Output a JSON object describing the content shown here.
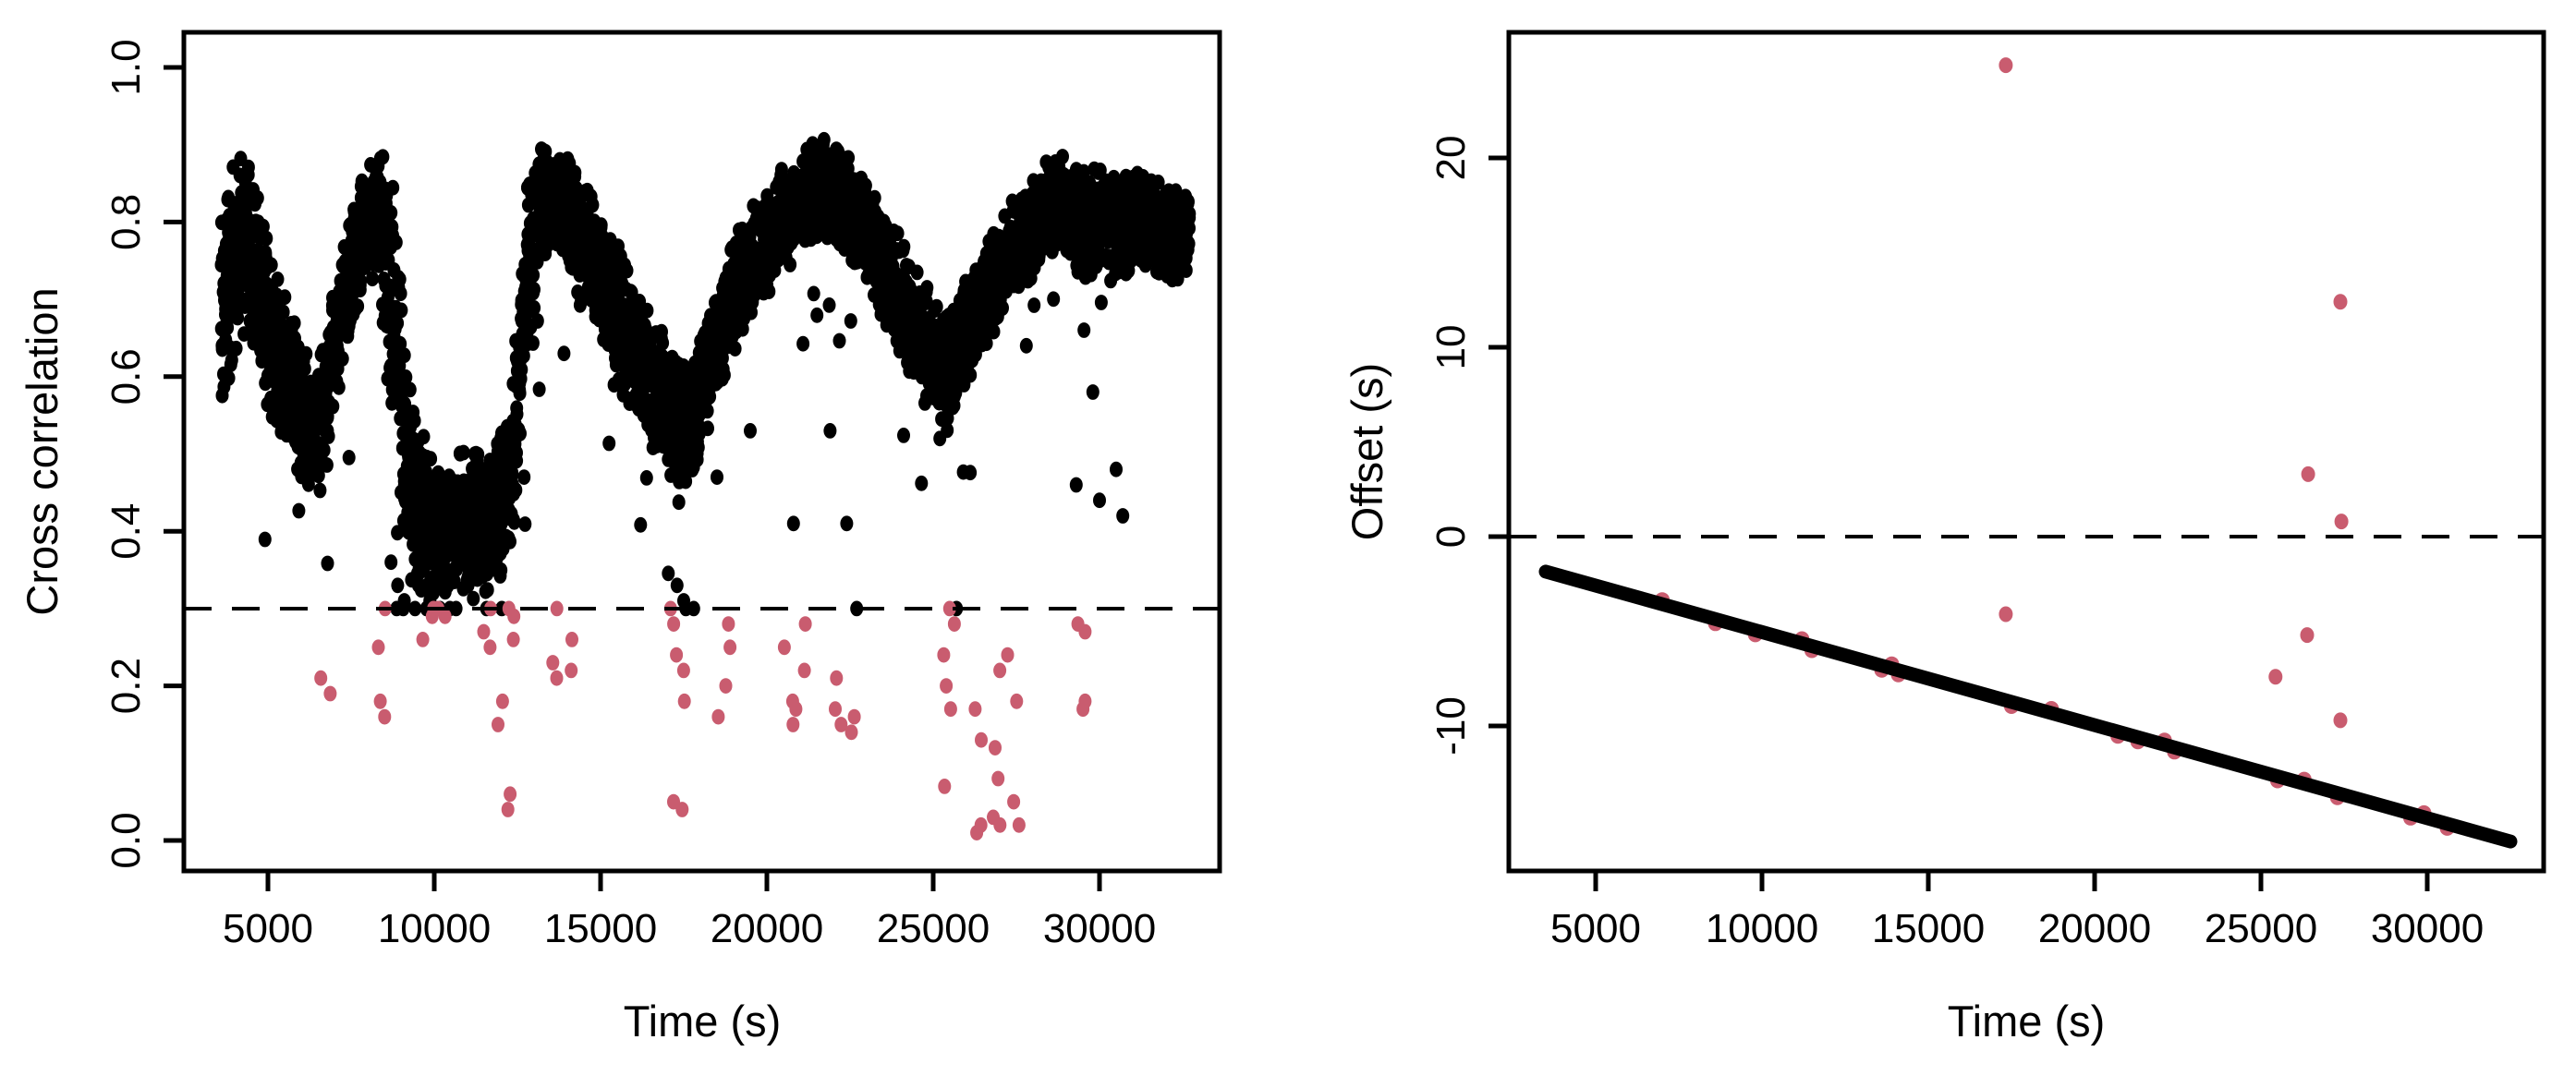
{
  "figure": {
    "background": "#ffffff",
    "black": "#000000",
    "flagged_color": "#C95C6F"
  },
  "chart_data": [
    {
      "id": "cross-correlation-panel",
      "type": "scatter",
      "xlabel": "Time (s)",
      "ylabel": "Cross correlation",
      "xlim": [
        2470,
        33580
      ],
      "ylim": [
        -0.04,
        1.045
      ],
      "xticks": [
        5000,
        10000,
        15000,
        20000,
        25000,
        30000
      ],
      "xtick_labels": [
        "5000",
        "10000",
        "15000",
        "20000",
        "25000",
        "30000"
      ],
      "yticks": [
        0.0,
        0.2,
        0.4,
        0.6,
        0.8,
        1.0
      ],
      "ytick_labels": [
        "0.0",
        "0.2",
        "0.4",
        "0.6",
        "0.8",
        "1.0"
      ],
      "threshold_line": {
        "y": 0.3,
        "style": "dashed"
      },
      "grid": false,
      "band_profile": [
        [
          3600,
          0.53,
          0.86
        ],
        [
          4000,
          0.62,
          0.88
        ],
        [
          4400,
          0.66,
          0.9
        ],
        [
          4800,
          0.58,
          0.82
        ],
        [
          5200,
          0.52,
          0.74
        ],
        [
          5600,
          0.5,
          0.7
        ],
        [
          6000,
          0.46,
          0.66
        ],
        [
          6400,
          0.44,
          0.62
        ],
        [
          6800,
          0.5,
          0.68
        ],
        [
          7200,
          0.58,
          0.78
        ],
        [
          7600,
          0.66,
          0.84
        ],
        [
          8000,
          0.72,
          0.89
        ],
        [
          8400,
          0.7,
          0.9
        ],
        [
          8800,
          0.45,
          0.85
        ],
        [
          9200,
          0.33,
          0.6
        ],
        [
          9600,
          0.31,
          0.55
        ],
        [
          10000,
          0.3,
          0.52
        ],
        [
          10400,
          0.31,
          0.5
        ],
        [
          10800,
          0.32,
          0.52
        ],
        [
          11200,
          0.3,
          0.5
        ],
        [
          11600,
          0.31,
          0.52
        ],
        [
          12000,
          0.33,
          0.55
        ],
        [
          12400,
          0.38,
          0.62
        ],
        [
          12800,
          0.62,
          0.86
        ],
        [
          13200,
          0.74,
          0.9
        ],
        [
          13600,
          0.76,
          0.9
        ],
        [
          14000,
          0.72,
          0.89
        ],
        [
          14400,
          0.7,
          0.87
        ],
        [
          14800,
          0.66,
          0.84
        ],
        [
          15200,
          0.62,
          0.8
        ],
        [
          15600,
          0.58,
          0.77
        ],
        [
          16000,
          0.55,
          0.74
        ],
        [
          16400,
          0.52,
          0.7
        ],
        [
          16800,
          0.48,
          0.67
        ],
        [
          17200,
          0.45,
          0.64
        ],
        [
          17600,
          0.44,
          0.62
        ],
        [
          18000,
          0.5,
          0.66
        ],
        [
          18400,
          0.55,
          0.71
        ],
        [
          18800,
          0.6,
          0.76
        ],
        [
          19200,
          0.64,
          0.8
        ],
        [
          19600,
          0.68,
          0.83
        ],
        [
          20000,
          0.7,
          0.85
        ],
        [
          20400,
          0.72,
          0.87
        ],
        [
          20800,
          0.74,
          0.88
        ],
        [
          21200,
          0.76,
          0.9
        ],
        [
          21600,
          0.78,
          0.92
        ],
        [
          22000,
          0.76,
          0.91
        ],
        [
          22400,
          0.74,
          0.89
        ],
        [
          22800,
          0.73,
          0.87
        ],
        [
          23200,
          0.7,
          0.85
        ],
        [
          23600,
          0.66,
          0.82
        ],
        [
          24000,
          0.62,
          0.79
        ],
        [
          24400,
          0.58,
          0.75
        ],
        [
          24800,
          0.55,
          0.72
        ],
        [
          25200,
          0.53,
          0.69
        ],
        [
          25600,
          0.55,
          0.7
        ],
        [
          26000,
          0.58,
          0.73
        ],
        [
          26400,
          0.62,
          0.76
        ],
        [
          26800,
          0.65,
          0.79
        ],
        [
          27200,
          0.68,
          0.82
        ],
        [
          27600,
          0.7,
          0.84
        ],
        [
          28000,
          0.72,
          0.86
        ],
        [
          28400,
          0.74,
          0.88
        ],
        [
          28800,
          0.75,
          0.89
        ],
        [
          29200,
          0.73,
          0.88
        ],
        [
          29600,
          0.72,
          0.87
        ],
        [
          30000,
          0.74,
          0.88
        ],
        [
          30400,
          0.73,
          0.87
        ],
        [
          30800,
          0.72,
          0.87
        ],
        [
          31200,
          0.74,
          0.88
        ],
        [
          31600,
          0.73,
          0.87
        ],
        [
          32000,
          0.72,
          0.86
        ],
        [
          32400,
          0.71,
          0.86
        ],
        [
          32700,
          0.72,
          0.86
        ]
      ],
      "black_stragglers": [
        [
          8700,
          0.36
        ],
        [
          8900,
          0.33
        ],
        [
          9100,
          0.31
        ],
        [
          12300,
          0.45
        ],
        [
          12500,
          0.62
        ],
        [
          12700,
          0.47
        ],
        [
          13900,
          0.63
        ],
        [
          16300,
          0.55
        ],
        [
          17300,
          0.33
        ],
        [
          17500,
          0.31
        ],
        [
          17800,
          0.3
        ],
        [
          18500,
          0.47
        ],
        [
          19500,
          0.53
        ],
        [
          20800,
          0.41
        ],
        [
          21900,
          0.53
        ],
        [
          22400,
          0.41
        ],
        [
          22700,
          0.3
        ],
        [
          25200,
          0.52
        ],
        [
          25700,
          0.3
        ],
        [
          27800,
          0.64
        ],
        [
          29300,
          0.46
        ],
        [
          29800,
          0.58
        ],
        [
          30000,
          0.44
        ],
        [
          30500,
          0.48
        ],
        [
          30700,
          0.42
        ]
      ],
      "flagged_points": [
        [
          6700,
          0.19
        ],
        [
          6700,
          0.21
        ],
        [
          8500,
          0.16
        ],
        [
          8500,
          0.18
        ],
        [
          8500,
          0.25
        ],
        [
          8500,
          0.3
        ],
        [
          9800,
          0.26
        ],
        [
          9800,
          0.29
        ],
        [
          9800,
          0.3
        ],
        [
          10150,
          0.29
        ],
        [
          10150,
          0.3
        ],
        [
          11500,
          0.25
        ],
        [
          11500,
          0.27
        ],
        [
          11500,
          0.3
        ],
        [
          11900,
          0.15
        ],
        [
          11900,
          0.18
        ],
        [
          12300,
          0.26
        ],
        [
          12300,
          0.29
        ],
        [
          12300,
          0.3
        ],
        [
          12400,
          0.04
        ],
        [
          12400,
          0.06
        ],
        [
          13600,
          0.21
        ],
        [
          13600,
          0.23
        ],
        [
          13600,
          0.3
        ],
        [
          14000,
          0.22
        ],
        [
          14000,
          0.26
        ],
        [
          17300,
          0.04
        ],
        [
          17300,
          0.05
        ],
        [
          17300,
          0.24
        ],
        [
          17300,
          0.28
        ],
        [
          17300,
          0.3
        ],
        [
          17600,
          0.18
        ],
        [
          17600,
          0.22
        ],
        [
          18700,
          0.16
        ],
        [
          18700,
          0.2
        ],
        [
          18700,
          0.25
        ],
        [
          18700,
          0.28
        ],
        [
          20600,
          0.15
        ],
        [
          20600,
          0.18
        ],
        [
          20600,
          0.25
        ],
        [
          21000,
          0.17
        ],
        [
          21000,
          0.22
        ],
        [
          21000,
          0.28
        ],
        [
          22200,
          0.15
        ],
        [
          22200,
          0.17
        ],
        [
          22200,
          0.21
        ],
        [
          22500,
          0.14
        ],
        [
          22500,
          0.16
        ],
        [
          25500,
          0.07
        ],
        [
          25500,
          0.17
        ],
        [
          25500,
          0.2
        ],
        [
          25500,
          0.24
        ],
        [
          25500,
          0.28
        ],
        [
          25500,
          0.3
        ],
        [
          26300,
          0.01
        ],
        [
          26300,
          0.02
        ],
        [
          26300,
          0.13
        ],
        [
          26300,
          0.17
        ],
        [
          27000,
          0.02
        ],
        [
          27000,
          0.03
        ],
        [
          27000,
          0.08
        ],
        [
          27000,
          0.12
        ],
        [
          27000,
          0.22
        ],
        [
          27400,
          0.02
        ],
        [
          27400,
          0.05
        ],
        [
          27400,
          0.18
        ],
        [
          27400,
          0.24
        ],
        [
          29500,
          0.17
        ],
        [
          29500,
          0.18
        ],
        [
          29500,
          0.27
        ],
        [
          29500,
          0.28
        ]
      ]
    },
    {
      "id": "offset-panel",
      "type": "scatter",
      "xlabel": "Time (s)",
      "ylabel": "Offset (s)",
      "xlim": [
        2470,
        33580
      ],
      "ylim": [
        -17.7,
        26.6
      ],
      "xticks": [
        5000,
        10000,
        15000,
        20000,
        25000,
        30000
      ],
      "xtick_labels": [
        "5000",
        "10000",
        "15000",
        "20000",
        "25000",
        "30000"
      ],
      "yticks": [
        -10,
        0,
        10,
        20
      ],
      "ytick_labels": [
        "-10",
        "0",
        "10",
        "20"
      ],
      "threshold_line": {
        "y": 0,
        "style": "dashed"
      },
      "grid": false,
      "trend_line": {
        "x_start": 3500,
        "y_start": -1.85,
        "x_end": 32500,
        "y_end": -16.1
      },
      "flagged_on_line_x": [
        7000,
        8600,
        9800,
        11200,
        11500,
        13600,
        13900,
        14100,
        17500,
        18700,
        20700,
        21300,
        22100,
        22400,
        25500,
        26300,
        27300,
        29500,
        29900,
        30600
      ],
      "flagged_outliers": [
        [
          17330,
          24.9
        ],
        [
          17330,
          -4.1
        ],
        [
          27390,
          12.4
        ],
        [
          26420,
          3.3
        ],
        [
          27420,
          0.8
        ],
        [
          26390,
          -5.2
        ],
        [
          25440,
          -7.4
        ],
        [
          27390,
          -9.7
        ]
      ]
    }
  ]
}
